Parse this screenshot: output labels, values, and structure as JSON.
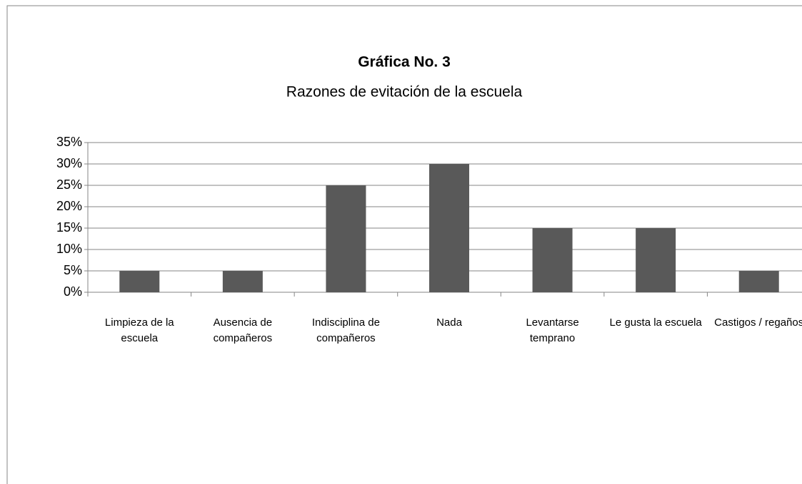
{
  "chart_data": {
    "type": "bar",
    "title": "Gráfica No. 3",
    "subtitle": "Razones de evitación de la escuela",
    "categories": [
      "Limpieza de la escuela",
      "Ausencia de compañeros",
      "Indisciplina de compañeros",
      "Nada",
      "Levantarse temprano",
      "Le gusta la escuela",
      "Castigos / regaños"
    ],
    "values": [
      5,
      5,
      25,
      30,
      15,
      15,
      5
    ],
    "color": "#595959",
    "ylim": [
      0,
      35
    ],
    "yticks": [
      {
        "value": 0,
        "label": "0%"
      },
      {
        "value": 5,
        "label": "5%"
      },
      {
        "value": 10,
        "label": "10%"
      },
      {
        "value": 15,
        "label": "15%"
      },
      {
        "value": 20,
        "label": "20%"
      },
      {
        "value": 25,
        "label": "25%"
      },
      {
        "value": 30,
        "label": "30%"
      },
      {
        "value": 35,
        "label": "35%"
      }
    ],
    "grid": true
  }
}
